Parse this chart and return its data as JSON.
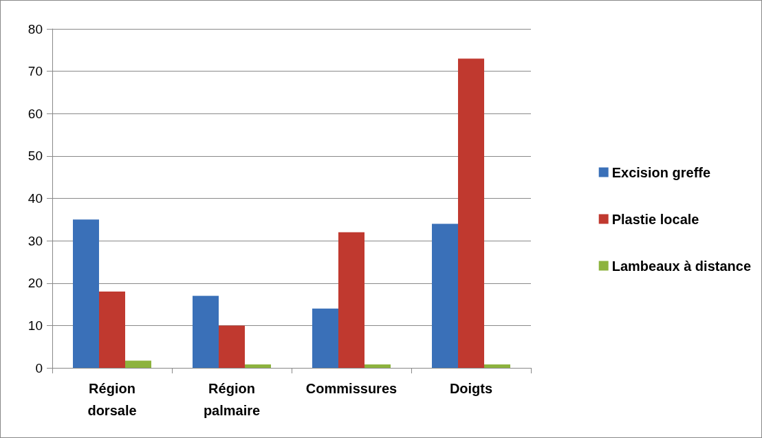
{
  "chart_data": {
    "type": "bar",
    "categories": [
      "Région\ndorsale",
      "Région\npalmaire",
      "Commissures",
      "Doigts"
    ],
    "series": [
      {
        "name": "Excision greffe",
        "color": "#3a70b8",
        "values": [
          35,
          17,
          14,
          34
        ]
      },
      {
        "name": "Plastie locale",
        "color": "#c0392f",
        "values": [
          18,
          10,
          32,
          73
        ]
      },
      {
        "name": "Lambeaux à distance",
        "color": "#8db33e",
        "values": [
          1.7,
          0.8,
          0.8,
          0.8
        ]
      }
    ],
    "ylim": [
      0,
      80
    ],
    "yticks": [
      0,
      10,
      20,
      30,
      40,
      50,
      60,
      70,
      80
    ],
    "grid": "y",
    "legend": "right"
  }
}
